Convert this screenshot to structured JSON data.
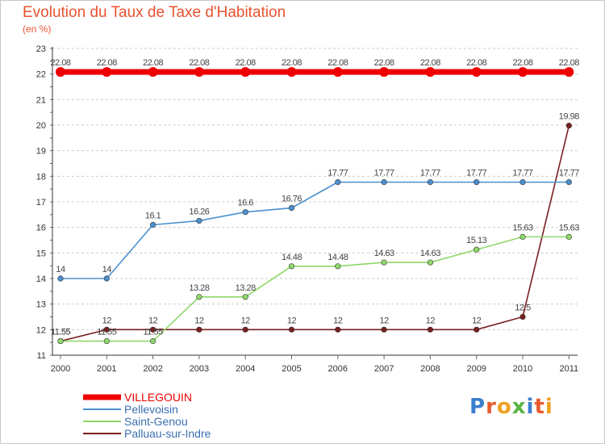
{
  "chart": {
    "title": "Evolution du Taux de Taxe d'Habitation",
    "subtitle": "(en %)"
  },
  "logo": {
    "letters": [
      "P",
      "r",
      "o",
      "x",
      "i",
      "t",
      "i"
    ]
  },
  "colors": {
    "title": "#e8522f",
    "grid": "#cccccc",
    "axis": "#333333",
    "logo": [
      "#3a7fcf",
      "#e85a2a",
      "#f0a020",
      "#59b440",
      "#3a7fcf",
      "#e85a2a",
      "#f0a020"
    ]
  },
  "chart_data": {
    "type": "line",
    "title": "Evolution du Taux de Taxe d'Habitation",
    "subtitle": "(en %)",
    "xlabel": "",
    "ylabel": "",
    "x": [
      "2000",
      "2001",
      "2002",
      "2003",
      "2004",
      "2005",
      "2006",
      "2007",
      "2008",
      "2009",
      "2010",
      "2011"
    ],
    "ylim": [
      11,
      23
    ],
    "yticks": [
      11,
      12,
      13,
      14,
      15,
      16,
      17,
      18,
      19,
      20,
      21,
      22,
      23
    ],
    "grid": "horizontal",
    "legend": "bottom-left",
    "series": [
      {
        "name": "VILLEGOUIN",
        "color": "#ee0000",
        "bold": true,
        "values": [
          22.08,
          22.08,
          22.08,
          22.08,
          22.08,
          22.08,
          22.08,
          22.08,
          22.08,
          22.08,
          22.08,
          22.08
        ],
        "labels": [
          "22.08",
          "22.08",
          "22.08",
          "22.08",
          "22.08",
          "22.08",
          "22.08",
          "22.08",
          "22.08",
          "22.08",
          "22.08",
          "22.08"
        ]
      },
      {
        "name": "Pellevoisin",
        "color": "#4a90d0",
        "bold": false,
        "values": [
          14,
          14,
          16.1,
          16.26,
          16.6,
          16.76,
          17.77,
          17.77,
          17.77,
          17.77,
          17.77,
          17.77
        ],
        "labels": [
          "14",
          "14",
          "16.1",
          "16.26",
          "16.6",
          "16.76",
          "17.77",
          "17.77",
          "17.77",
          "17.77",
          "17.77",
          "17.77"
        ]
      },
      {
        "name": "Saint-Genou",
        "color": "#8fd86a",
        "bold": false,
        "values": [
          11.55,
          11.55,
          11.55,
          13.28,
          13.28,
          14.48,
          14.48,
          14.63,
          14.63,
          15.13,
          15.63,
          15.63
        ],
        "labels": [
          "11.55",
          "11.55",
          "11.55",
          "13.28",
          "13.28",
          "14.48",
          "14.48",
          "14.63",
          "14.63",
          "15.13",
          "15.63",
          "15.63"
        ]
      },
      {
        "name": "Palluau-sur-Indre",
        "color": "#7a1f1f",
        "bold": false,
        "values": [
          11.55,
          12,
          12,
          12,
          12,
          12,
          12,
          12,
          12,
          12,
          12.5,
          19.98
        ],
        "labels": [
          "11.55",
          "12",
          "12",
          "12",
          "12",
          "12",
          "12",
          "12",
          "12",
          "12",
          "12.5",
          "19.98"
        ]
      }
    ]
  }
}
